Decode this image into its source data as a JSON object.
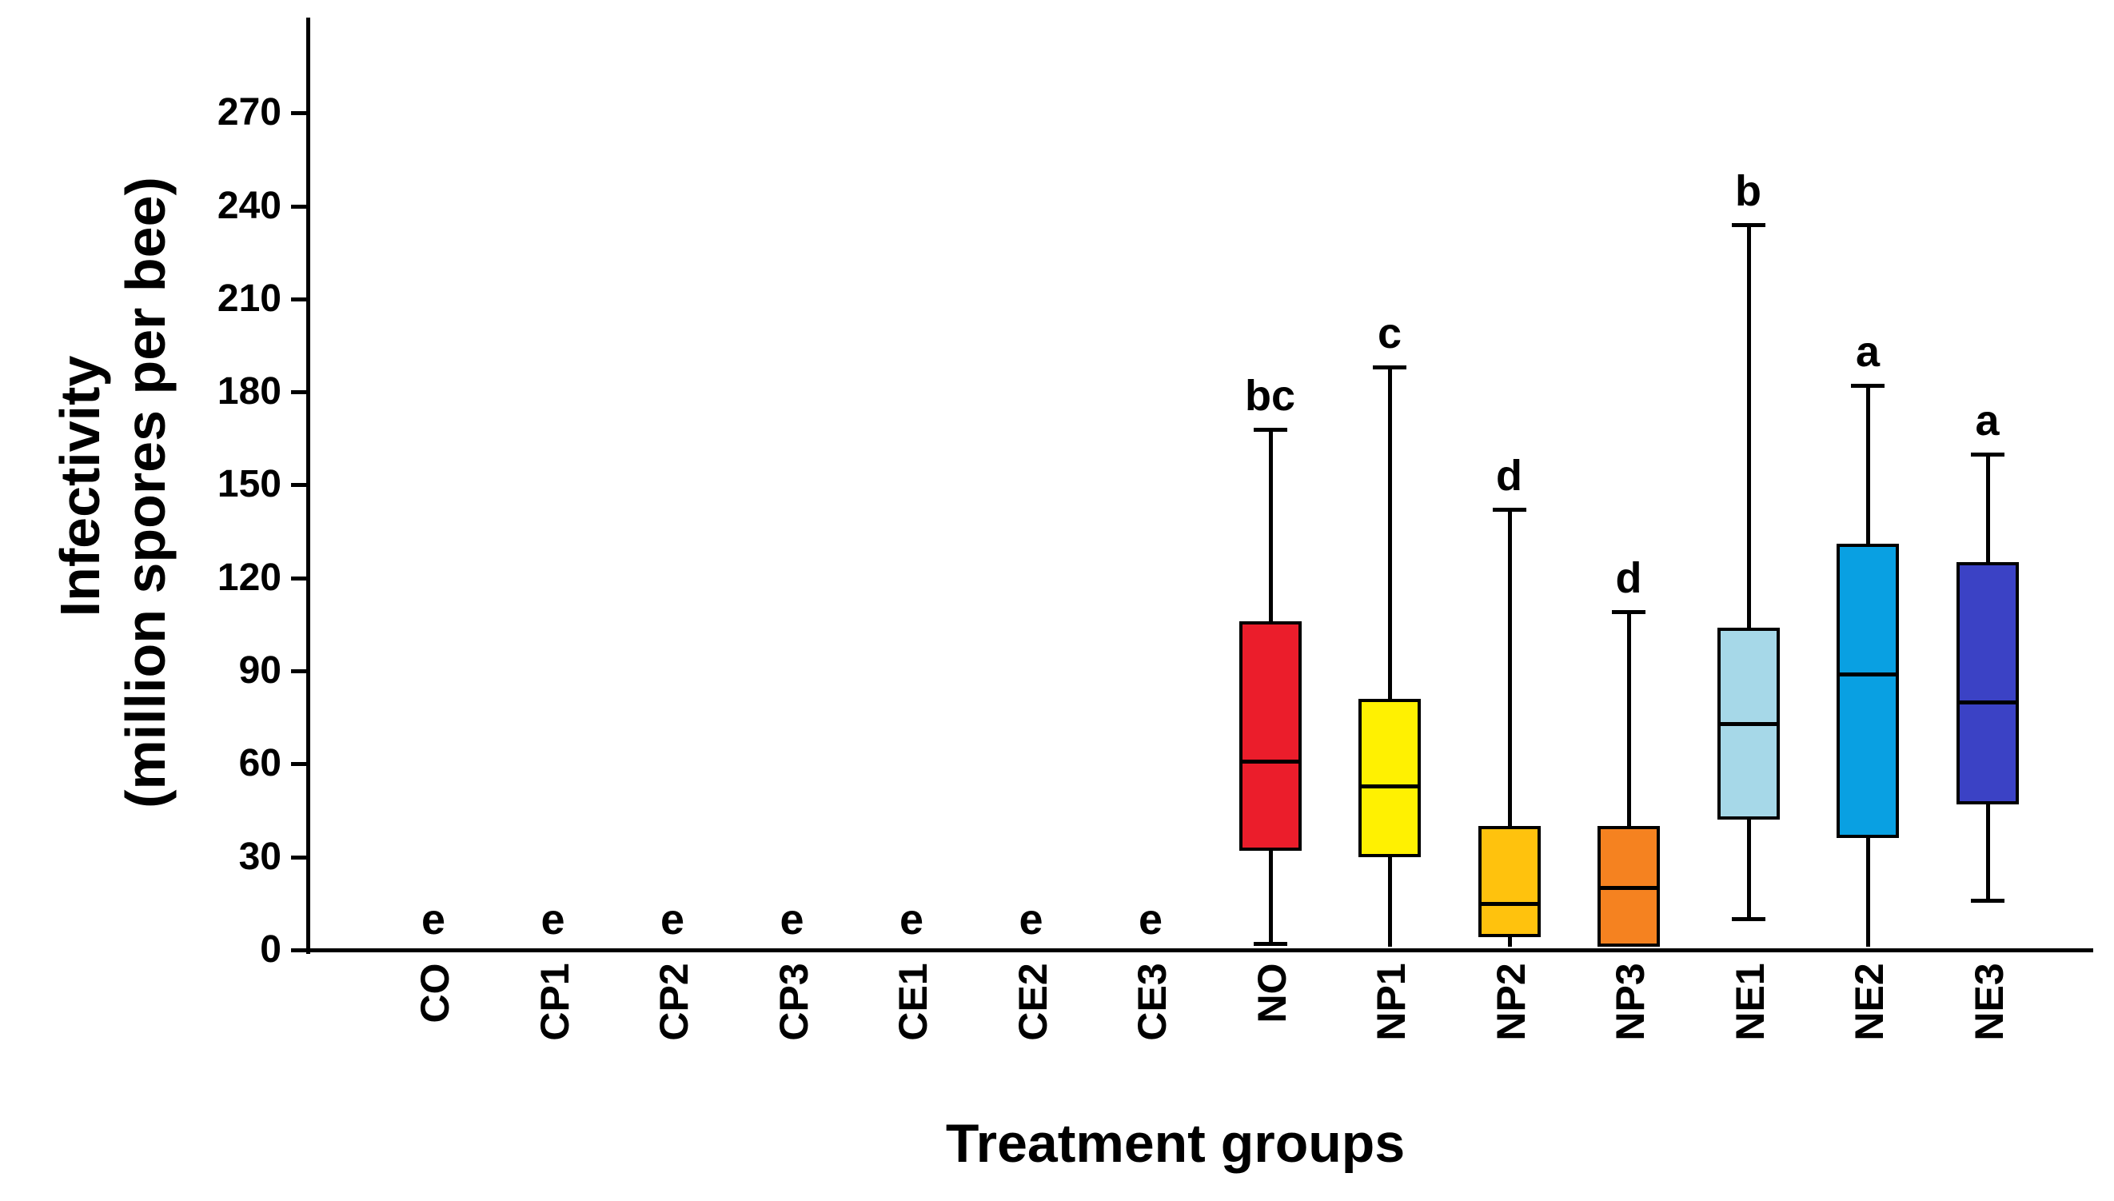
{
  "figure": {
    "y_axis_title_line1": "Infectivity",
    "y_axis_title_line2": "(million spores per bee)",
    "x_axis_title": "Treatment groups"
  },
  "axis": {
    "y_tick_labels": [
      "0",
      "30",
      "60",
      "90",
      "120",
      "150",
      "180",
      "210",
      "240",
      "270"
    ],
    "y_tick_values": [
      0,
      30,
      60,
      90,
      120,
      150,
      180,
      210,
      240,
      270
    ]
  },
  "chart_data": {
    "type": "box",
    "title": "",
    "xlabel": "Treatment groups",
    "ylabel": "Infectivity (million spores per bee)",
    "ylim": [
      0,
      298
    ],
    "grid": false,
    "legend": "none",
    "categories": [
      "CO",
      "CP1",
      "CP2",
      "CP3",
      "CE1",
      "CE2",
      "CE3",
      "NO",
      "NP1",
      "NP2",
      "NP3",
      "NE1",
      "NE2",
      "NE3"
    ],
    "groups": [
      {
        "label": "CO",
        "sig_letter": "e",
        "color": null,
        "box": null
      },
      {
        "label": "CP1",
        "sig_letter": "e",
        "color": null,
        "box": null
      },
      {
        "label": "CP2",
        "sig_letter": "e",
        "color": null,
        "box": null
      },
      {
        "label": "CP3",
        "sig_letter": "e",
        "color": null,
        "box": null
      },
      {
        "label": "CE1",
        "sig_letter": "e",
        "color": null,
        "box": null
      },
      {
        "label": "CE2",
        "sig_letter": "e",
        "color": null,
        "box": null
      },
      {
        "label": "CE3",
        "sig_letter": "e",
        "color": null,
        "box": null
      },
      {
        "label": "NO",
        "sig_letter": "bc",
        "color": "#EB1D2B",
        "box": {
          "whisker_low": 2,
          "q1": 32,
          "median": 61,
          "q3": 106,
          "whisker_high": 168
        }
      },
      {
        "label": "NP1",
        "sig_letter": "c",
        "color": "#FFF101",
        "box": {
          "whisker_low": 1,
          "q1": 30,
          "median": 53,
          "q3": 81,
          "whisker_high": 188
        }
      },
      {
        "label": "NP2",
        "sig_letter": "d",
        "color": "#FFC20D",
        "box": {
          "whisker_low": 1,
          "q1": 4,
          "median": 15,
          "q3": 40,
          "whisker_high": 142
        }
      },
      {
        "label": "NP3",
        "sig_letter": "d",
        "color": "#F58220",
        "box": {
          "whisker_low": 1,
          "q1": 1,
          "median": 20,
          "q3": 40,
          "whisker_high": 109
        }
      },
      {
        "label": "NE1",
        "sig_letter": "b",
        "color": "#A6D8E8",
        "box": {
          "whisker_low": 10,
          "q1": 42,
          "median": 73,
          "q3": 104,
          "whisker_high": 234
        }
      },
      {
        "label": "NE2",
        "sig_letter": "a",
        "color": "#09A0E2",
        "box": {
          "whisker_low": 1,
          "q1": 36,
          "median": 89,
          "q3": 131,
          "whisker_high": 182
        }
      },
      {
        "label": "NE3",
        "sig_letter": "a",
        "color": "#3B42C5",
        "box": {
          "whisker_low": 16,
          "q1": 47,
          "median": 80,
          "q3": 125,
          "whisker_high": 160
        }
      }
    ],
    "units": "million spores per bee"
  }
}
